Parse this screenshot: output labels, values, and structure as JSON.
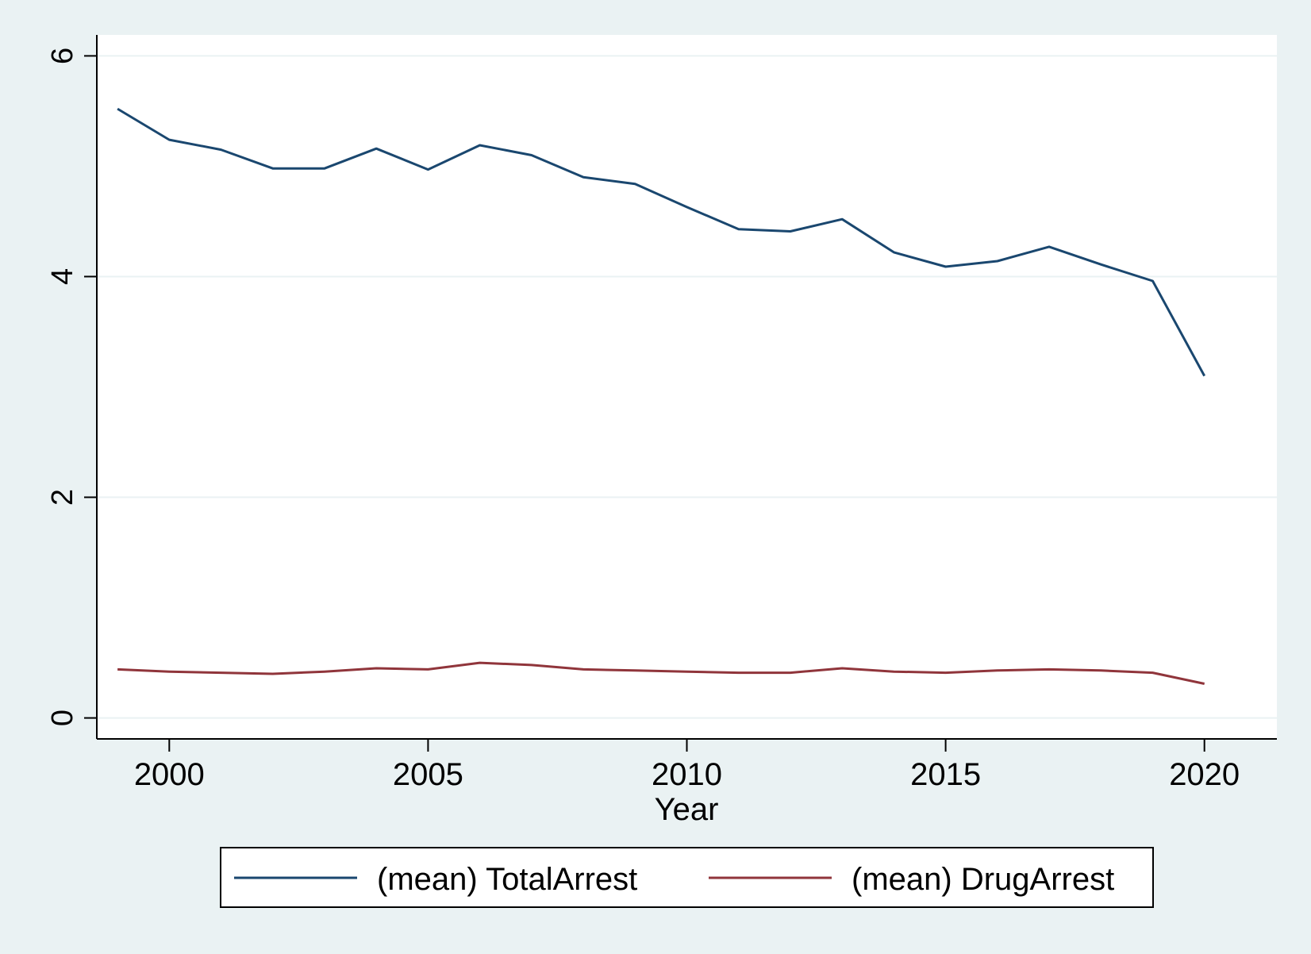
{
  "chart_data": {
    "type": "line",
    "title": "",
    "xlabel": "Year",
    "ylabel": "",
    "xlim": [
      1998.6,
      2021.4
    ],
    "ylim": [
      -0.19,
      6.19
    ],
    "x_ticks": [
      "2000",
      "2005",
      "2010",
      "2015",
      "2020"
    ],
    "y_ticks": [
      "0",
      "2",
      "4",
      "6"
    ],
    "grid": "horizontal",
    "legend_position": "bottom",
    "x": [
      1999,
      2000,
      2001,
      2002,
      2003,
      2004,
      2005,
      2006,
      2007,
      2008,
      2009,
      2010,
      2011,
      2012,
      2013,
      2014,
      2015,
      2016,
      2017,
      2018,
      2019,
      2020
    ],
    "series": [
      {
        "name": "(mean) TotalArrest",
        "color": "#1a476f",
        "values": [
          5.52,
          5.24,
          5.15,
          4.98,
          4.98,
          5.16,
          4.97,
          5.19,
          5.1,
          4.9,
          4.84,
          4.63,
          4.43,
          4.41,
          4.52,
          4.22,
          4.09,
          4.14,
          4.27,
          4.11,
          3.96,
          3.1
        ]
      },
      {
        "name": "(mean) DrugArrest",
        "color": "#90353b",
        "values": [
          0.44,
          0.42,
          0.41,
          0.4,
          0.42,
          0.45,
          0.44,
          0.5,
          0.48,
          0.44,
          0.43,
          0.42,
          0.41,
          0.41,
          0.45,
          0.42,
          0.41,
          0.43,
          0.44,
          0.43,
          0.41,
          0.31
        ]
      }
    ]
  },
  "style": {
    "page_bg": "#eaf2f3",
    "plot_bg": "#ffffff",
    "grid_color": "#eaf2f3"
  }
}
